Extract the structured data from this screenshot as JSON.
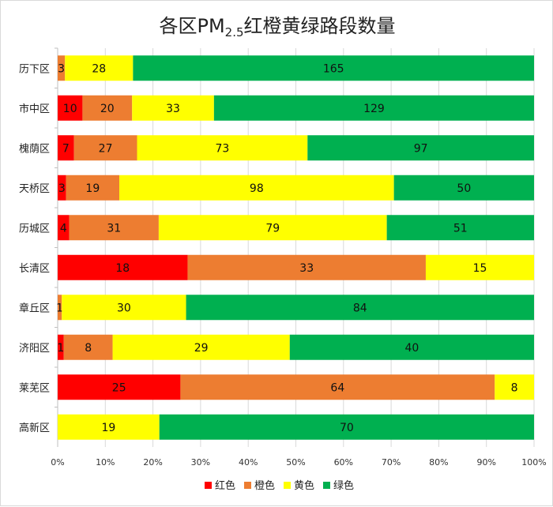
{
  "chart_data": {
    "type": "bar",
    "orientation": "horizontal",
    "stacked": "percent",
    "title": "各区PM",
    "title_sub": "2.5",
    "title_suffix": "红橙黄绿路段数量",
    "categories": [
      "历下区",
      "市中区",
      "槐荫区",
      "天桥区",
      "历城区",
      "长清区",
      "章丘区",
      "济阳区",
      "莱芜区",
      "高新区"
    ],
    "series": [
      {
        "name": "红色",
        "color": "#ff0000",
        "values": [
          0,
          10,
          7,
          3,
          4,
          18,
          0,
          1,
          25,
          0
        ]
      },
      {
        "name": "橙色",
        "color": "#ed7d31",
        "values": [
          3,
          20,
          27,
          19,
          31,
          33,
          1,
          8,
          64,
          0
        ]
      },
      {
        "name": "黄色",
        "color": "#ffff00",
        "values": [
          28,
          33,
          73,
          98,
          79,
          15,
          30,
          29,
          8,
          19
        ]
      },
      {
        "name": "绿色",
        "color": "#00b050",
        "values": [
          165,
          129,
          97,
          50,
          51,
          0,
          84,
          40,
          0,
          70
        ]
      }
    ],
    "xlim": [
      0,
      100
    ],
    "xticks": [
      "0%",
      "10%",
      "20%",
      "30%",
      "40%",
      "50%",
      "60%",
      "70%",
      "80%",
      "90%",
      "100%"
    ],
    "grid": true,
    "legend": "bottom"
  }
}
